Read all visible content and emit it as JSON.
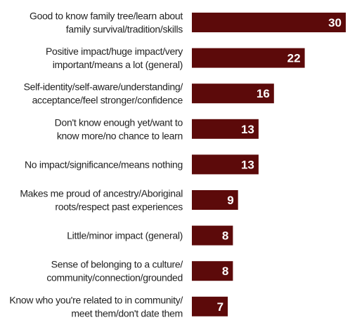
{
  "chart_data": {
    "type": "bar",
    "orientation": "horizontal",
    "categories": [
      [
        "Good to know family tree/learn about",
        "family survival/tradition/skills"
      ],
      [
        "Positive impact/huge impact/very",
        "important/means a lot (general)"
      ],
      [
        "Self-identity/self-aware/understanding/",
        "acceptance/feel stronger/confidence"
      ],
      [
        "Don't know enough yet/want to",
        "know more/no chance to learn"
      ],
      [
        "No impact/significance/means nothing"
      ],
      [
        "Makes me proud of ancestry/Aboriginal",
        "roots/respect past experiences"
      ],
      [
        "Little/minor impact (general)"
      ],
      [
        "Sense of belonging to a culture/",
        "community/connection/grounded"
      ],
      [
        "Know who you're related to in community/",
        "meet them/don't date them"
      ]
    ],
    "values": [
      30,
      22,
      16,
      13,
      13,
      9,
      8,
      8,
      7
    ],
    "data_labels": [
      "30",
      "22",
      "16",
      "13",
      "13",
      "9",
      "8",
      "8",
      "7"
    ],
    "xlim": [
      0,
      30
    ],
    "grid": false,
    "legend": "none",
    "bar_color": "#5c0a0a",
    "label_color": "#ffffff",
    "title": "",
    "xlabel": "",
    "ylabel": ""
  }
}
